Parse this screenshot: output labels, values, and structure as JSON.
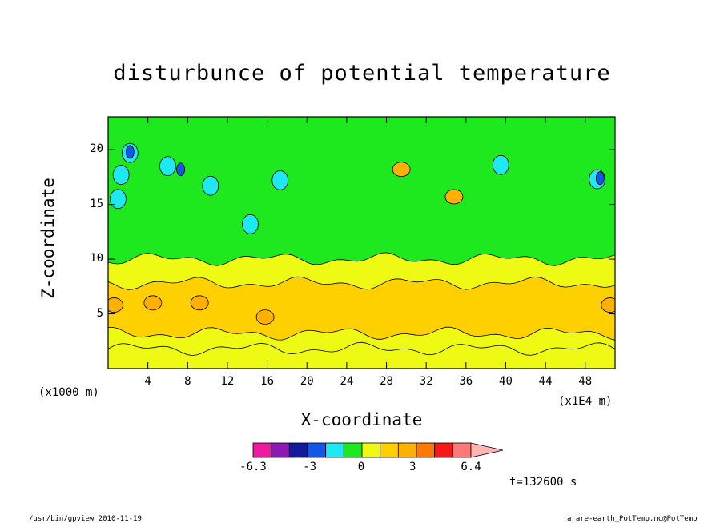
{
  "chart_data": {
    "type": "heatmap",
    "title": "disturbunce of potential temperature",
    "xlabel": "X-coordinate",
    "ylabel": "Z-coordinate",
    "x_unit": "(x1E4 m)",
    "y_unit": "(x1000 m)",
    "x_ticks": [
      4,
      8,
      12,
      16,
      20,
      24,
      28,
      32,
      36,
      40,
      44,
      48
    ],
    "y_ticks": [
      5,
      10,
      15,
      20
    ],
    "xlim": [
      0,
      51
    ],
    "ylim": [
      0,
      23
    ],
    "colorbar": {
      "colors": [
        "#ee1aa2",
        "#8b1ab5",
        "#12199a",
        "#1257e8",
        "#1ee8f2",
        "#1ee81e",
        "#eefa14",
        "#ffd000",
        "#ffb000",
        "#ff7800",
        "#f51a1a",
        "#ff7878",
        "#ffb4b4"
      ],
      "labels": [
        "-6.3",
        "-3",
        "0",
        "3",
        "6.4"
      ],
      "label_values": [
        -6.3,
        -3,
        0,
        3,
        6.4
      ],
      "range": [
        -6.3,
        6.4
      ]
    },
    "layers": [
      {
        "z_range": [
          0,
          1.8
        ],
        "level": "yellow",
        "color": "#eefa14"
      },
      {
        "z_range": [
          1.8,
          3.2
        ],
        "level": "yellow",
        "color": "#eefa14"
      },
      {
        "z_range": [
          3.2,
          7.8
        ],
        "level": "light-orange",
        "color": "#ffd000"
      },
      {
        "z_range": [
          7.8,
          10
        ],
        "level": "yellow",
        "color": "#eefa14"
      },
      {
        "z_range": [
          10,
          23
        ],
        "level": "green",
        "color": "#1ee81e"
      }
    ],
    "warm_cells": [
      {
        "x": 0.6,
        "z": 5.8,
        "color": "#ffb000"
      },
      {
        "x": 4.5,
        "z": 6.0,
        "color": "#ffb000"
      },
      {
        "x": 9.2,
        "z": 6.0,
        "color": "#ffb000"
      },
      {
        "x": 15.8,
        "z": 4.7,
        "color": "#ffb000"
      },
      {
        "x": 29.5,
        "z": 18.2,
        "color": "#ffb000"
      },
      {
        "x": 34.8,
        "z": 15.7,
        "color": "#ffb000"
      },
      {
        "x": 50.5,
        "z": 5.8,
        "color": "#ffb000"
      }
    ],
    "cool_cells": [
      {
        "x": 1.3,
        "z": 17.7,
        "color": "#1ee8f2"
      },
      {
        "x": 2.2,
        "z": 19.7,
        "color": "#1ee8f2"
      },
      {
        "x": 1.0,
        "z": 15.5,
        "color": "#1ee8f2"
      },
      {
        "x": 6.0,
        "z": 18.5,
        "color": "#1ee8f2"
      },
      {
        "x": 10.3,
        "z": 16.7,
        "color": "#1ee8f2"
      },
      {
        "x": 17.3,
        "z": 17.2,
        "color": "#1ee8f2"
      },
      {
        "x": 39.5,
        "z": 18.6,
        "color": "#1ee8f2"
      },
      {
        "x": 49.2,
        "z": 17.3,
        "color": "#1ee8f2"
      },
      {
        "x": 14.3,
        "z": 13.2,
        "color": "#1ee8f2"
      },
      {
        "x": 2.2,
        "z": 19.8,
        "color": "#1257e8"
      },
      {
        "x": 7.3,
        "z": 18.2,
        "color": "#1257e8"
      },
      {
        "x": 49.5,
        "z": 17.4,
        "color": "#1257e8"
      }
    ],
    "time_label": "t=132600 s"
  },
  "footer": {
    "left": "/usr/bin/gpview   2010-11-19",
    "right": "arare-earth_PotTemp.nc@PotTemp"
  }
}
